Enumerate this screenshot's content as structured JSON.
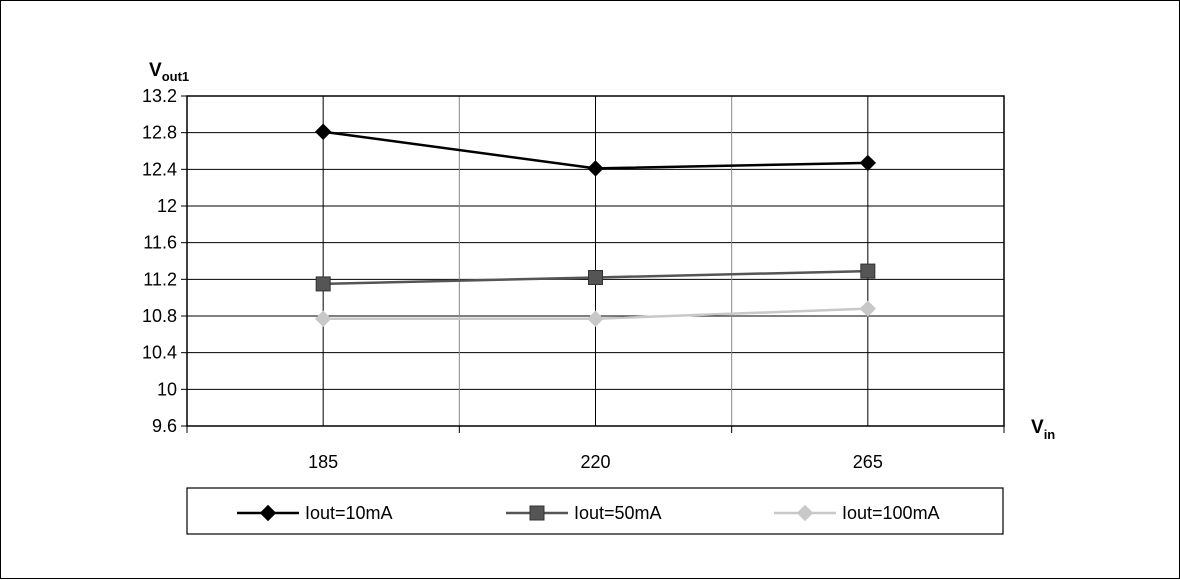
{
  "chart_data": {
    "type": "line",
    "title": "",
    "ylabel": {
      "main": "V",
      "sub": "out1"
    },
    "xlabel": {
      "main": "V",
      "sub": "in"
    },
    "categories": [
      "185",
      "220",
      "265"
    ],
    "ylim": [
      9.6,
      13.2
    ],
    "ytick_step": 0.4,
    "y_ticks": [
      "13.2",
      "12.8",
      "12.4",
      "12",
      "11.6",
      "11.2",
      "10.8",
      "10.4",
      "10",
      "9.6"
    ],
    "grid": true,
    "legend_position": "bottom",
    "series": [
      {
        "name": "Iout=10mA",
        "values": [
          12.81,
          12.41,
          12.47
        ],
        "color": "#000000",
        "marker": "diamond"
      },
      {
        "name": "Iout=50mA",
        "values": [
          11.15,
          11.22,
          11.29
        ],
        "color": "#555555",
        "marker": "square"
      },
      {
        "name": "Iout=100mA",
        "values": [
          10.77,
          10.77,
          10.88
        ],
        "color": "#c8c8c8",
        "marker": "diamond"
      }
    ]
  }
}
